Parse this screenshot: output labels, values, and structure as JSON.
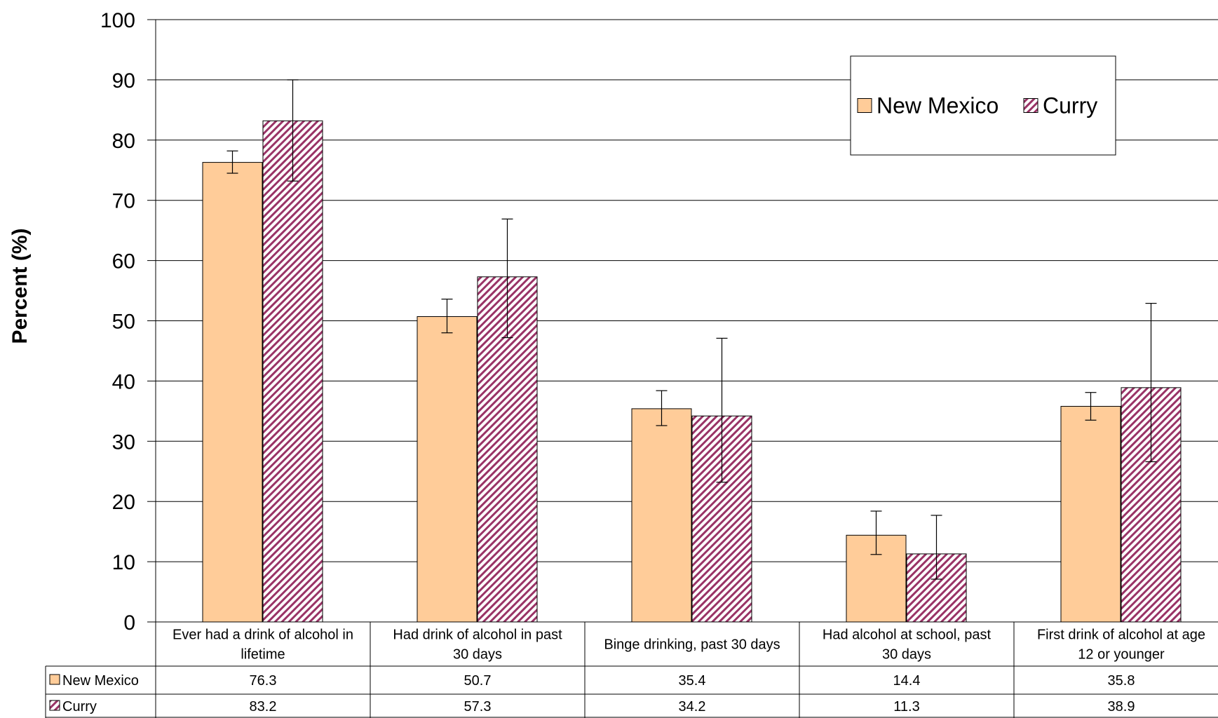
{
  "chart_data": {
    "type": "bar",
    "ylabel": "Percent (%)",
    "ylim": [
      0,
      100
    ],
    "yticks": [
      "0",
      "10",
      "20",
      "30",
      "40",
      "50",
      "60",
      "70",
      "80",
      "90",
      "100"
    ],
    "grid": true,
    "legend_position": "top-right",
    "categories": [
      [
        "Ever had a drink of alcohol in",
        "lifetime"
      ],
      [
        "Had drink of alcohol in past",
        "30 days"
      ],
      [
        "Binge drinking, past 30 days"
      ],
      [
        "Had alcohol at school, past",
        "30 days"
      ],
      [
        "First drink of alcohol at age",
        "12 or younger"
      ]
    ],
    "series": [
      {
        "name": "New Mexico",
        "values": [
          76.3,
          50.7,
          35.4,
          14.4,
          35.8
        ],
        "value_labels": [
          "76.3",
          "50.7",
          "35.4",
          "14.4",
          "35.8"
        ],
        "error_low": [
          74.5,
          48.0,
          32.6,
          11.2,
          33.5
        ],
        "error_high": [
          78.2,
          53.6,
          38.4,
          18.4,
          38.1
        ],
        "color": "#ffcc99",
        "pattern": "solid"
      },
      {
        "name": "Curry",
        "values": [
          83.2,
          57.3,
          34.2,
          11.3,
          38.9
        ],
        "value_labels": [
          "83.2",
          "57.3",
          "34.2",
          "11.3",
          "38.9"
        ],
        "error_low": [
          73.2,
          47.2,
          23.2,
          7.1,
          26.6
        ],
        "error_high": [
          90.0,
          66.9,
          47.1,
          17.7,
          52.9
        ],
        "color": "#993366",
        "pattern": "diagonal-stripes"
      }
    ]
  }
}
